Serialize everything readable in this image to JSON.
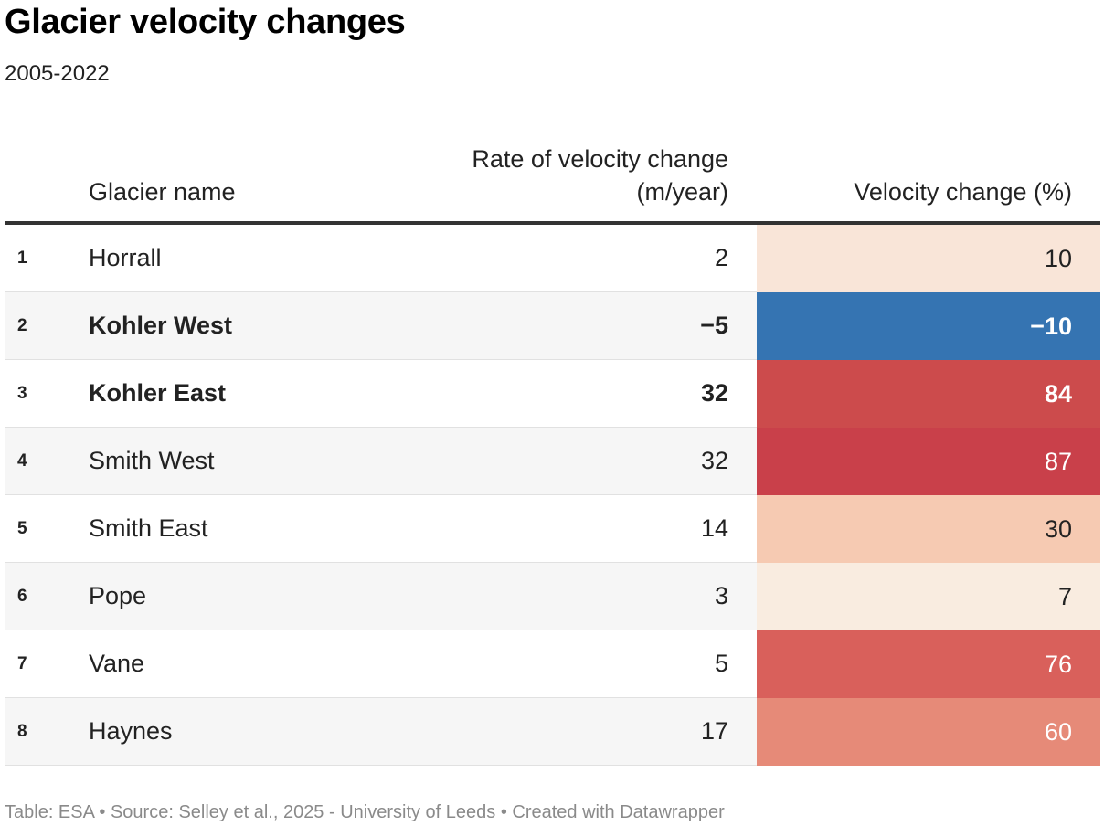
{
  "title": "Glacier velocity changes",
  "subtitle": "2005-2022",
  "columns": {
    "name": "Glacier name",
    "rate_line1": "Rate of velocity change",
    "rate_line2": "(m/year)",
    "pct": "Velocity change (%)"
  },
  "rows": [
    {
      "rank": "1",
      "name": "Horrall",
      "rate": "2",
      "pct": "10",
      "bold": false,
      "bg": "#f9e5d8",
      "fg": "#222222"
    },
    {
      "rank": "2",
      "name": "Kohler West",
      "rate": "−5",
      "pct": "−10",
      "bold": true,
      "bg": "#3574b2",
      "fg": "#ffffff"
    },
    {
      "rank": "3",
      "name": "Kohler East",
      "rate": "32",
      "pct": "84",
      "bold": true,
      "bg": "#cc4b4c",
      "fg": "#ffffff"
    },
    {
      "rank": "4",
      "name": "Smith West",
      "rate": "32",
      "pct": "87",
      "bold": false,
      "bg": "#c9404a",
      "fg": "#ffffff"
    },
    {
      "rank": "5",
      "name": "Smith East",
      "rate": "14",
      "pct": "30",
      "bold": false,
      "bg": "#f6cab2",
      "fg": "#222222"
    },
    {
      "rank": "6",
      "name": "Pope",
      "rate": "3",
      "pct": "7",
      "bold": false,
      "bg": "#f9ece0",
      "fg": "#222222"
    },
    {
      "rank": "7",
      "name": "Vane",
      "rate": "5",
      "pct": "76",
      "bold": false,
      "bg": "#d9605b",
      "fg": "#ffffff"
    },
    {
      "rank": "8",
      "name": "Haynes",
      "rate": "17",
      "pct": "60",
      "bold": false,
      "bg": "#e68a78",
      "fg": "#ffffff"
    }
  ],
  "footer": "Table: ESA • Source: Selley et al., 2025 - University of Leeds • Created with Datawrapper",
  "chart_data": {
    "type": "table",
    "title": "Glacier velocity changes",
    "subtitle": "2005-2022",
    "columns": [
      "Glacier name",
      "Rate of velocity change (m/year)",
      "Velocity change (%)"
    ],
    "categories": [
      "Horrall",
      "Kohler West",
      "Kohler East",
      "Smith West",
      "Smith East",
      "Pope",
      "Vane",
      "Haynes"
    ],
    "series": [
      {
        "name": "Rate of velocity change (m/year)",
        "values": [
          2,
          -5,
          32,
          32,
          14,
          3,
          5,
          17
        ]
      },
      {
        "name": "Velocity change (%)",
        "values": [
          10,
          -10,
          84,
          87,
          30,
          7,
          76,
          60
        ]
      }
    ]
  }
}
